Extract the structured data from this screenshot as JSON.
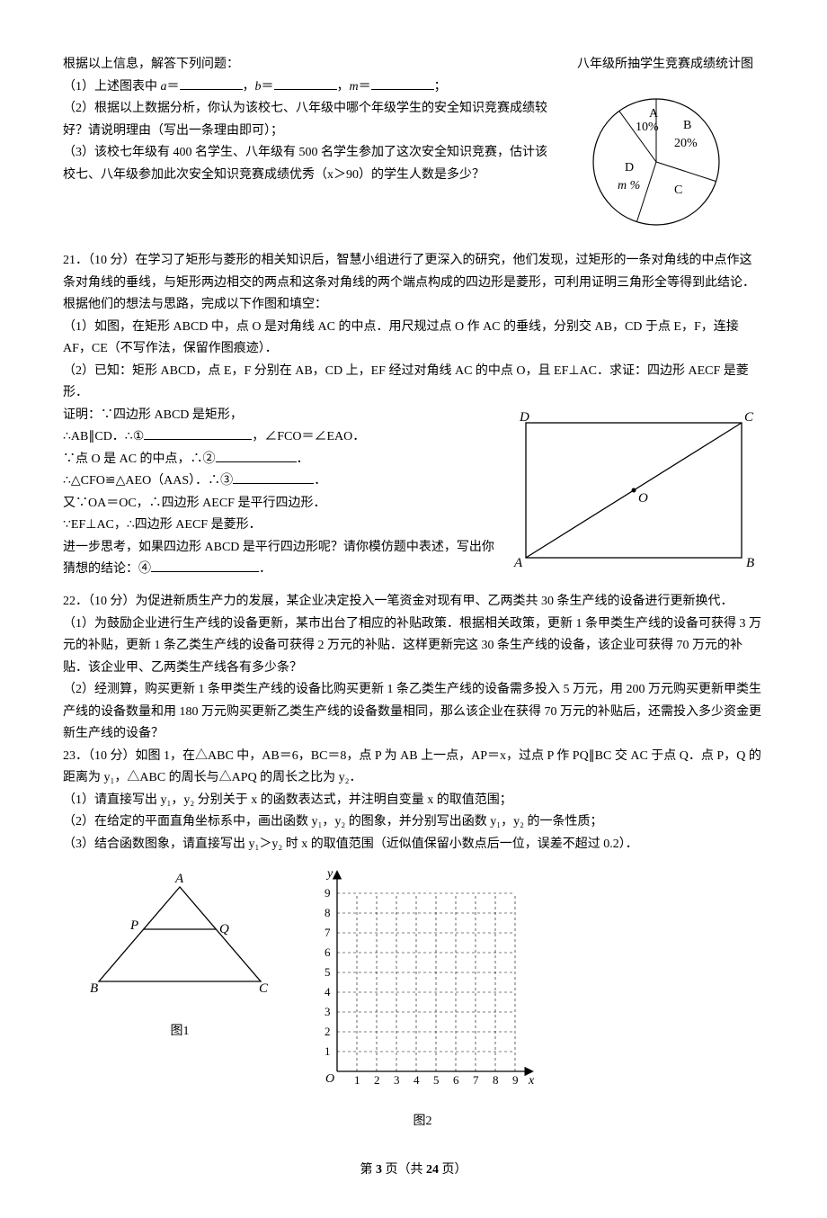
{
  "intro": "根据以上信息，解答下列问题：",
  "q20": {
    "p1_a": "（1）上述图表中 ",
    "p1_b": "＝",
    "p1_c": "，",
    "p1_d": "＝",
    "p1_e": "，",
    "p1_f": "＝",
    "p1_g": "；",
    "v_a": "a",
    "v_b": "b",
    "v_m": "m",
    "p2": "（2）根据以上数据分析，你认为该校七、八年级中哪个年级学生的安全知识竞赛成绩较好？请说明理由（写出一条理由即可）；",
    "p3": "（3）该校七年级有 400 名学生、八年级有 500 名学生参加了这次安全知识竞赛，估计该校七、八年级参加此次安全知识竞赛成绩优秀（x＞90）的学生人数是多少？"
  },
  "pie": {
    "title": "八年级所抽学生竞赛成绩统计图",
    "A_label": "A",
    "A_val": "10%",
    "B_label": "B",
    "B_val": "20%",
    "C_label": "C",
    "D_label": "D",
    "D_val": "m %",
    "colors": {
      "fill": "#ffffff",
      "stroke": "#000000"
    }
  },
  "q21": {
    "head": "21．（10 分）在学习了矩形与菱形的相关知识后，智慧小组进行了更深入的研究，他们发现，过矩形的一条对角线的中点作这条对角线的垂线，与矩形两边相交的两点和这条对角线的两个端点构成的四边形是菱形，可利用证明三角形全等得到此结论．根据他们的想法与思路，完成以下作图和填空：",
    "p1": "（1）如图，在矩形 ABCD 中，点 O 是对角线 AC 的中点．用尺规过点 O 作 AC 的垂线，分别交 AB，CD 于点 E，F，连接 AF，CE（不写作法，保留作图痕迹）．",
    "p2": "（2）已知：矩形 ABCD，点 E，F 分别在 AB，CD 上，EF 经过对角线 AC 的中点 O，且 EF⊥AC．求证：四边形 AECF 是菱形．",
    "proof1": "证明：∵四边形 ABCD 是矩形，",
    "proof2a": "∴AB∥CD．∴①",
    "proof2b": "，∠FCO＝∠EAO．",
    "proof3a": "∵点 O 是 AC 的中点，∴②",
    "proof3b": "．",
    "proof4a": "∴△CFO≌△AEO（AAS）．∴③",
    "proof4b": "．",
    "proof5": "又∵OA＝OC，∴四边形 AECF 是平行四边形．",
    "proof6": "∵EF⊥AC，∴四边形 AECF 是菱形．",
    "proof7a": "进一步思考，如果四边形 ABCD 是平行四边形呢？请你模仿题中表述，写出你猜想的结论：④",
    "proof7b": "．",
    "rect_labels": {
      "A": "A",
      "B": "B",
      "C": "C",
      "D": "D",
      "O": "O"
    }
  },
  "q22": {
    "head": "22．（10 分）为促进新质生产力的发展，某企业决定投入一笔资金对现有甲、乙两类共 30 条生产线的设备进行更新换代．",
    "p1": "（1）为鼓励企业进行生产线的设备更新，某市出台了相应的补贴政策．根据相关政策，更新 1 条甲类生产线的设备可获得 3 万元的补贴，更新 1 条乙类生产线的设备可获得 2 万元的补贴．这样更新完这 30 条生产线的设备，该企业可获得 70 万元的补贴．该企业甲、乙两类生产线各有多少条？",
    "p2": "（2）经测算，购买更新 1 条甲类生产线的设备比购买更新 1 条乙类生产线的设备需多投入 5 万元，用 200 万元购买更新甲类生产线的设备数量和用 180 万元购买更新乙类生产线的设备数量相同，那么该企业在获得 70 万元的补贴后，还需投入多少资金更新生产线的设备？"
  },
  "q23": {
    "head": "23．（10 分）如图 1，在△ABC 中，AB＝6，BC＝8，点 P 为 AB 上一点，AP＝x，过点 P 作 PQ∥BC 交 AC 于点 Q．点 P，Q 的距离为 y₁，△ABC 的周长与△APQ 的周长之比为 y₂．",
    "p1": "（1）请直接写出 y₁，y₂ 分别关于 x 的函数表达式，并注明自变量 x 的取值范围；",
    "p2": "（2）在给定的平面直角坐标系中，画出函数 y₁，y₂ 的图象，并分别写出函数 y₁，y₂ 的一条性质；",
    "p3": "（3）结合函数图象，请直接写出 y₁＞y₂ 时 x 的取值范围（近似值保留小数点后一位，误差不超过 0.2）．",
    "tri_labels": {
      "A": "A",
      "B": "B",
      "C": "C",
      "P": "P",
      "Q": "Q"
    },
    "fig1": "图1",
    "fig2": "图2",
    "axis": {
      "ylabel": "y",
      "xlabel": "x",
      "O": "O",
      "ticks": [
        "1",
        "2",
        "3",
        "4",
        "5",
        "6",
        "7",
        "8",
        "9"
      ]
    }
  },
  "footer": {
    "a": "第 ",
    "b": "3",
    "c": " 页（共 ",
    "d": "24",
    "e": " 页）"
  }
}
